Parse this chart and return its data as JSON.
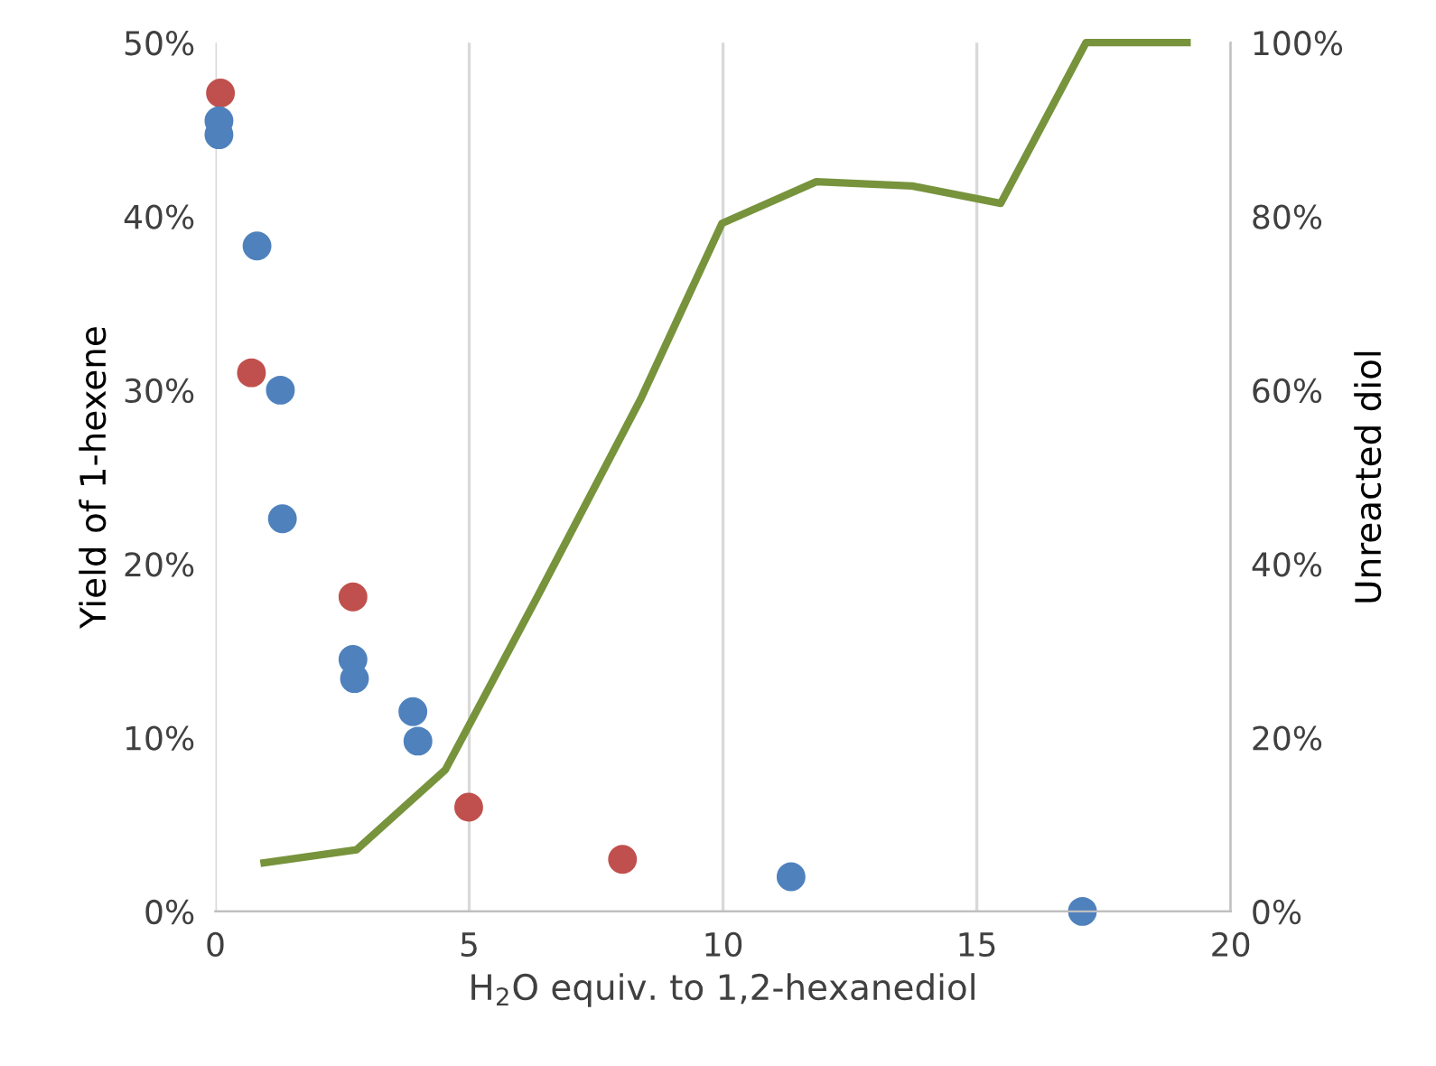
{
  "chart_data": {
    "type": "scatter",
    "xlabel": "H$_{2}$O equiv. to 1,2-hexanediol",
    "ylabel": "Yield of 1-hexene",
    "y2label": "Unreacted diol",
    "series": [
      {
        "marker": "circle",
        "color": "#c0504d",
        "x": [
          0.1,
          0.71,
          2.71,
          4.99,
          8.02
        ],
        "values": [
          47.1,
          31.0,
          18.1,
          6.0,
          3.0
        ]
      },
      {
        "marker": "circle",
        "color": "#4f81bd",
        "x": [
          0.07,
          0.07,
          0.82,
          1.28,
          1.32,
          2.71,
          2.74,
          3.89,
          3.99,
          11.34,
          17.08
        ],
        "values": [
          45.5,
          44.7,
          38.3,
          30.0,
          22.6,
          14.5,
          13.4,
          11.5,
          9.8,
          2.0,
          0.0
        ]
      },
      {
        "type": "line",
        "axis": "y2",
        "color": "#77933c",
        "x": [
          0.96,
          2.78,
          4.53,
          6.35,
          8.38,
          9.98,
          11.84,
          13.73,
          15.47,
          17.15,
          19.14
        ],
        "values": [
          5.6,
          7.1,
          16.3,
          36.3,
          59.0,
          79.2,
          84.0,
          83.5,
          81.5,
          100,
          100
        ]
      }
    ],
    "xlim": [
      0,
      20
    ],
    "xticks": [
      0,
      5,
      10,
      15,
      20
    ],
    "ylim": [
      0,
      50
    ],
    "yticks": [
      {
        "value": 0,
        "label": "0%"
      },
      {
        "value": 10,
        "label": "10%"
      },
      {
        "value": 20,
        "label": "20%"
      },
      {
        "value": 30,
        "label": "30%"
      },
      {
        "value": 40,
        "label": "40%"
      },
      {
        "value": 50,
        "label": "50%"
      }
    ],
    "y2lim": [
      0,
      100
    ],
    "y2ticks": [
      {
        "value": 0,
        "label": "0%"
      },
      {
        "value": 20,
        "label": "20%"
      },
      {
        "value": 40,
        "label": "40%"
      },
      {
        "value": 60,
        "label": "60%"
      },
      {
        "value": 80,
        "label": "80%"
      },
      {
        "value": 100,
        "label": "100%"
      }
    ],
    "grid": "x"
  }
}
